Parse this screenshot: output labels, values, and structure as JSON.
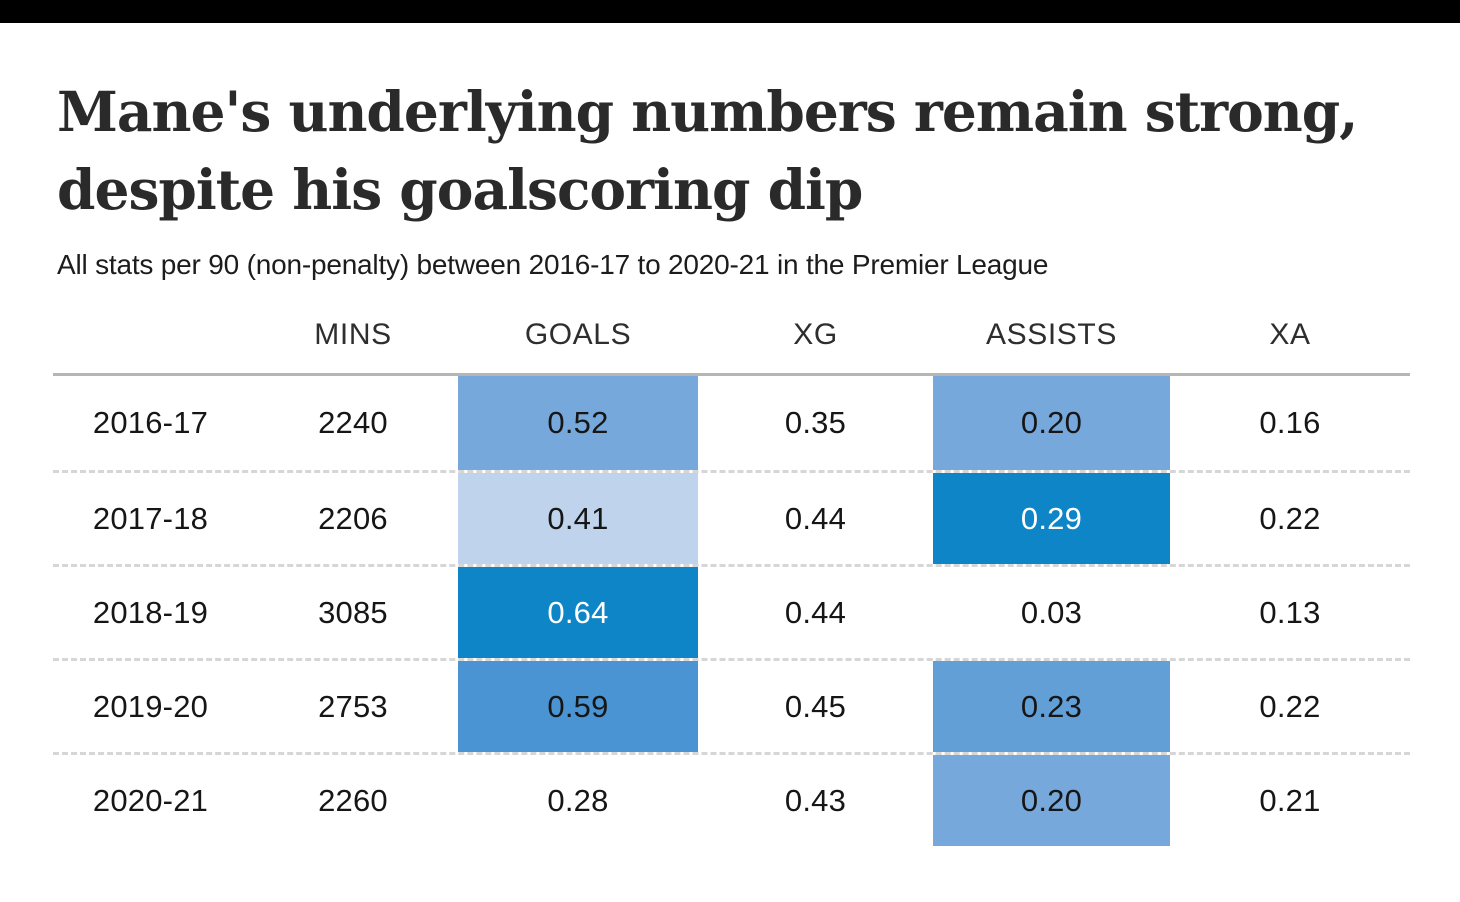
{
  "page": {
    "top_bar_color": "#000000",
    "background_color": "#ffffff"
  },
  "header": {
    "title_line1": "Mane's underlying numbers remain strong,",
    "title_line2": "despite his goalscoring dip",
    "subtitle": "All stats per 90 (non-penalty) between 2016-17 to 2020-21 in the Premier League"
  },
  "chart_data": {
    "type": "table",
    "title": "Mane's underlying numbers remain strong, despite his goalscoring dip",
    "subtitle": "All stats per 90 (non-penalty) between 2016-17 to 2020-21 in the Premier League",
    "column_headers": [
      "",
      "MINS",
      "GOALS",
      "XG",
      "ASSISTS",
      "XA"
    ],
    "row_labels": [
      "2016-17",
      "2017-18",
      "2018-19",
      "2019-20",
      "2020-21"
    ],
    "values": [
      [
        "2240",
        "0.52",
        "0.35",
        "0.20",
        "0.16"
      ],
      [
        "2206",
        "0.41",
        "0.44",
        "0.29",
        "0.22"
      ],
      [
        "3085",
        "0.64",
        "0.44",
        "0.03",
        "0.13"
      ],
      [
        "2753",
        "0.59",
        "0.45",
        "0.23",
        "0.22"
      ],
      [
        "2260",
        "0.28",
        "0.43",
        "0.20",
        "0.21"
      ]
    ],
    "cell_backgrounds": [
      [
        null,
        "#77a8db",
        null,
        "#77a8db",
        null
      ],
      [
        null,
        "#bfd4ec",
        null,
        "#0d85c7",
        null
      ],
      [
        null,
        "#0d85c7",
        null,
        null,
        null
      ],
      [
        null,
        "#4a94d3",
        null,
        "#619fd6",
        null
      ],
      [
        null,
        null,
        null,
        "#77a8db",
        null
      ]
    ],
    "cell_text_colors": [
      [
        null,
        null,
        null,
        null,
        null
      ],
      [
        null,
        null,
        null,
        "#ffffff",
        null
      ],
      [
        null,
        "#ffffff",
        null,
        null,
        null
      ],
      [
        null,
        null,
        null,
        null,
        null
      ],
      [
        null,
        null,
        null,
        null,
        null
      ]
    ],
    "layout": {
      "heatmap_columns": [
        "GOALS",
        "ASSISTS"
      ],
      "header_rule": "solid",
      "row_rule": "dashed",
      "grid": "horizontal-only"
    }
  }
}
